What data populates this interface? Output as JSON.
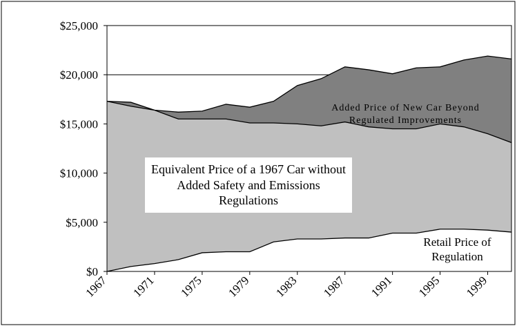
{
  "chart_data": {
    "type": "area",
    "x": [
      1967,
      1969,
      1971,
      1973,
      1975,
      1977,
      1979,
      1981,
      1983,
      1985,
      1987,
      1989,
      1991,
      1993,
      1995,
      1997,
      1999,
      2001
    ],
    "series": [
      {
        "name": "Added Price of New Car Beyond Regulated Improvements",
        "color": "#808080",
        "values": [
          17300,
          17200,
          16400,
          16200,
          16300,
          17000,
          16700,
          17300,
          18900,
          19600,
          20800,
          20500,
          20100,
          20700,
          20800,
          21500,
          21900,
          21600
        ]
      },
      {
        "name": "Equivalent Price of a 1967 Car without Added Safety and Emissions Regulations",
        "color": "#c0c0c0",
        "values": [
          17300,
          16800,
          16400,
          15500,
          15500,
          15500,
          15100,
          15100,
          15000,
          14800,
          15200,
          14700,
          14500,
          14500,
          15000,
          14700,
          14000,
          13100
        ]
      },
      {
        "name": "Retail Price of Regulation",
        "color": "#ffffff",
        "values": [
          0,
          500,
          800,
          1200,
          1900,
          2000,
          2000,
          3000,
          3300,
          3300,
          3400,
          3400,
          3900,
          3900,
          4300,
          4300,
          4200,
          4000
        ]
      }
    ],
    "xlim": [
      1967,
      2001
    ],
    "xticks": [
      1967,
      1971,
      1975,
      1979,
      1983,
      1987,
      1991,
      1995,
      1999
    ],
    "ylim": [
      0,
      25000
    ],
    "yticks": [
      {
        "value": 0,
        "label": "$0"
      },
      {
        "value": 5000,
        "label": "$5,000"
      },
      {
        "value": 10000,
        "label": "$10,000"
      },
      {
        "value": 15000,
        "label": "$15,000"
      },
      {
        "value": 20000,
        "label": "$20,000"
      },
      {
        "value": 25000,
        "label": "$25,000"
      }
    ],
    "grid": true
  }
}
